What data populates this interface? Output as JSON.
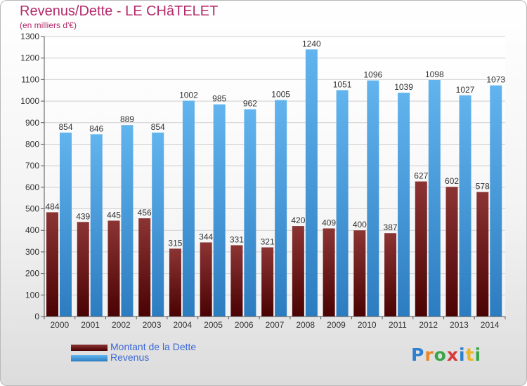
{
  "header": {
    "title": "Revenus/Dette - LE CHâTELET",
    "subtitle": "(en milliers d'€)"
  },
  "legend": {
    "items": [
      {
        "label": "Montant de la Dette",
        "color": "#7a1e1e"
      },
      {
        "label": "Revenus",
        "color": "#4a9fe0"
      }
    ]
  },
  "logo": {
    "text": "Proxiti",
    "letter_colors": [
      "#2f7fd1",
      "#e8882a",
      "#3aa64a",
      "#d83a3a",
      "#2f7fd1",
      "#e8b82a",
      "#3aa64a"
    ]
  },
  "chart_data": {
    "type": "bar",
    "title": "Revenus/Dette - LE CHâTELET",
    "subtitle": "(en milliers d'€)",
    "categories": [
      "2000",
      "2001",
      "2002",
      "2003",
      "2004",
      "2005",
      "2006",
      "2007",
      "2008",
      "2009",
      "2010",
      "2011",
      "2012",
      "2013",
      "2014"
    ],
    "series": [
      {
        "name": "Montant de la Dette",
        "color": "#7a1e1e",
        "values": [
          484,
          439,
          445,
          456,
          315,
          344,
          331,
          321,
          420,
          409,
          400,
          387,
          627,
          602,
          578
        ]
      },
      {
        "name": "Revenus",
        "color": "#4a9fe0",
        "values": [
          854,
          846,
          889,
          854,
          1002,
          985,
          962,
          1005,
          1240,
          1051,
          1096,
          1039,
          1098,
          1027,
          1073
        ]
      }
    ],
    "ylim": [
      0,
      1300
    ],
    "yticks": [
      0,
      100,
      200,
      300,
      400,
      500,
      600,
      700,
      800,
      900,
      1000,
      1100,
      1200,
      1300
    ],
    "grid": true,
    "legend_position": "bottom-left"
  }
}
